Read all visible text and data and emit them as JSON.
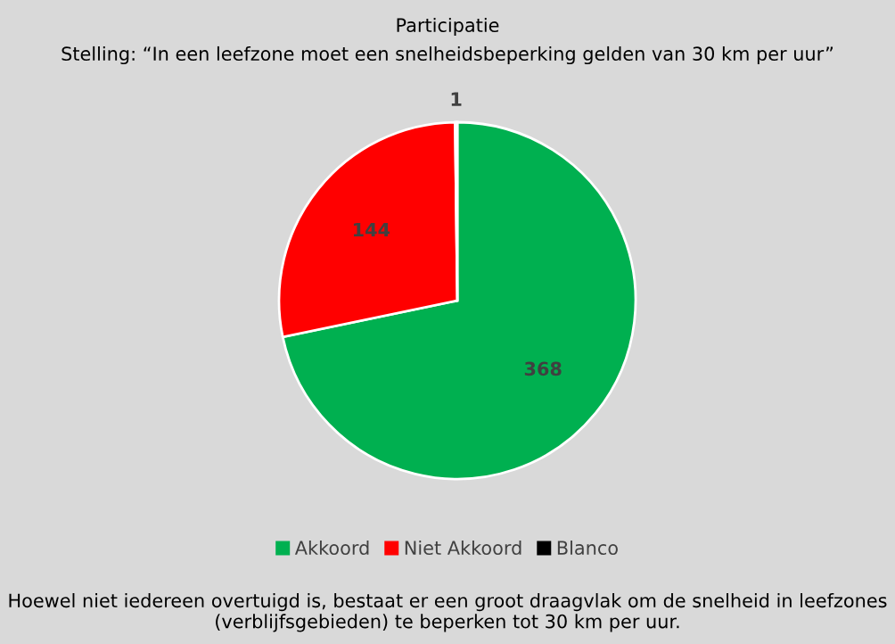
{
  "chart_data": {
    "type": "pie",
    "title": "Participatie",
    "subtitle": "Stelling: “In een leefzone moet een snelheidsbeperking gelden van 30 km per uur”",
    "categories": [
      "Akkoord",
      "Niet Akkoord",
      "Blanco"
    ],
    "values": [
      368,
      144,
      1
    ],
    "colors": [
      "#00b050",
      "#ff0000",
      "#000000"
    ],
    "data_labels": true,
    "legend": "bottom",
    "annotations": [
      "Hoewel niet iedereen overtuigd is, bestaat er een groot draagvlak om de snelheid in leefzones (verblijfsgebieden) te beperken tot 30 km per uur."
    ]
  }
}
